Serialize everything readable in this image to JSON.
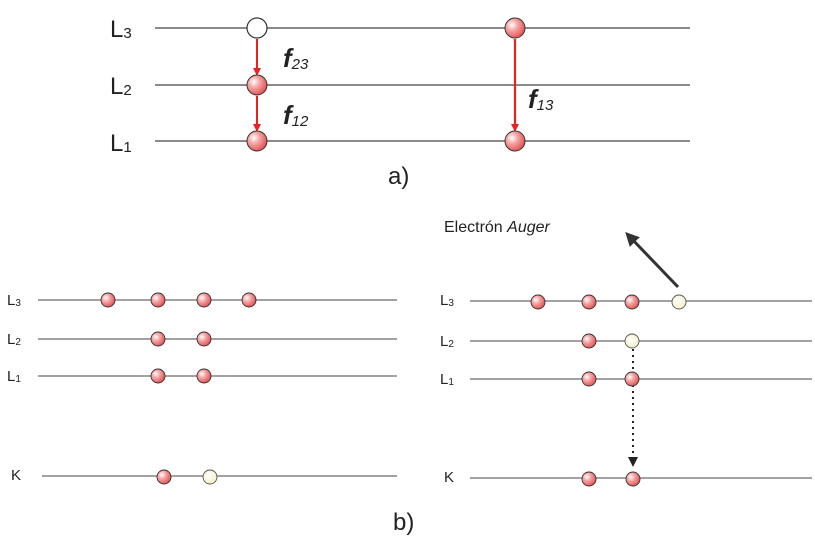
{
  "diagram_a": {
    "caption": "a)",
    "levels": [
      {
        "main": "L",
        "sub": "3"
      },
      {
        "main": "L",
        "sub": "2"
      },
      {
        "main": "L",
        "sub": "1"
      }
    ],
    "transitions": [
      {
        "main": "f",
        "sub": "23"
      },
      {
        "main": "f",
        "sub": "12"
      },
      {
        "main": "f",
        "sub": "13"
      }
    ]
  },
  "diagram_b": {
    "caption": "b)",
    "left_levels": [
      {
        "main": "L",
        "sub": "3"
      },
      {
        "main": "L",
        "sub": "2"
      },
      {
        "main": "L",
        "sub": "1"
      },
      {
        "main": "K",
        "sub": ""
      }
    ],
    "right_levels": [
      {
        "main": "L",
        "sub": "3"
      },
      {
        "main": "L",
        "sub": "2"
      },
      {
        "main": "L",
        "sub": "1"
      },
      {
        "main": "K",
        "sub": ""
      }
    ],
    "auger_label": {
      "text": "Electrón ",
      "italic": "Auger"
    }
  },
  "colors": {
    "filled": "#f08c8c",
    "vacancy": "#fbf6d2",
    "arrow_red": "#e82020",
    "line": "#222222"
  }
}
